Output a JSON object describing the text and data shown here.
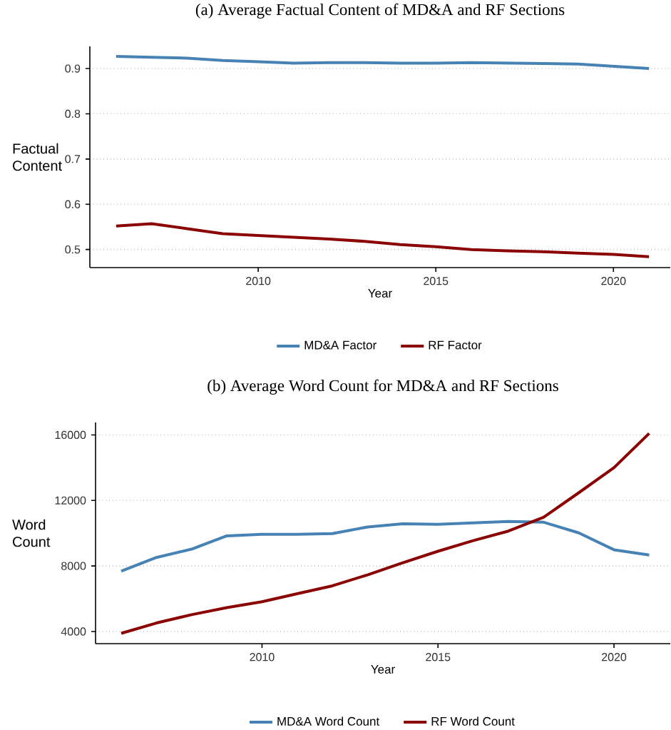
{
  "chart_data": [
    {
      "type": "line",
      "title": "(a) Average Factual Content of MD&A and RF Sections",
      "xlabel": "Year",
      "ylabel": "Factual Content",
      "x": [
        2006,
        2007,
        2008,
        2009,
        2010,
        2011,
        2012,
        2013,
        2014,
        2015,
        2016,
        2017,
        2018,
        2019,
        2020,
        2021
      ],
      "series": [
        {
          "name": "MD&A Factor",
          "color": "#4682b4",
          "values": [
            0.927,
            0.925,
            0.923,
            0.918,
            0.915,
            0.912,
            0.913,
            0.913,
            0.912,
            0.912,
            0.913,
            0.912,
            0.911,
            0.91,
            0.905,
            0.9
          ]
        },
        {
          "name": "RF Factor",
          "color": "#8b0000",
          "values": [
            0.552,
            0.557,
            0.546,
            0.535,
            0.531,
            0.527,
            0.523,
            0.518,
            0.511,
            0.506,
            0.5,
            0.497,
            0.495,
            0.492,
            0.489,
            0.484
          ]
        }
      ],
      "xlim": [
        2005.26,
        2021.6
      ],
      "xticks": [
        2010,
        2015,
        2020
      ],
      "ylim": [
        0.46,
        0.949
      ],
      "yticks": [
        0.5,
        0.6,
        0.7,
        0.8,
        0.9
      ],
      "grid": "y",
      "legend": "bottom",
      "line_style": "solid"
    },
    {
      "type": "line",
      "title": "(b) Average Word Count for MD&A and RF Sections",
      "xlabel": "Year",
      "ylabel": "Word Count",
      "x": [
        2006,
        2007,
        2008,
        2009,
        2010,
        2011,
        2012,
        2013,
        2014,
        2015,
        2016,
        2017,
        2018,
        2019,
        2020,
        2021
      ],
      "series": [
        {
          "name": "MD&A Word Count",
          "color": "#4682b4",
          "values": [
            7690,
            8520,
            9030,
            9840,
            9930,
            9930,
            9980,
            10380,
            10580,
            10540,
            10630,
            10720,
            10670,
            10020,
            8990,
            8670
          ]
        },
        {
          "name": "RF Word Count",
          "color": "#8b0000",
          "values": [
            3890,
            4520,
            5030,
            5460,
            5820,
            6310,
            6790,
            7460,
            8200,
            8900,
            9550,
            10130,
            10970,
            12470,
            14000,
            16090
          ]
        }
      ],
      "xlim": [
        2005.27,
        2021.6
      ],
      "xticks": [
        2010,
        2015,
        2020
      ],
      "ylim": [
        3260,
        16760
      ],
      "yticks": [
        4000,
        8000,
        12000,
        16000
      ],
      "grid": "y",
      "legend": "bottom",
      "line_style": "solid"
    }
  ]
}
